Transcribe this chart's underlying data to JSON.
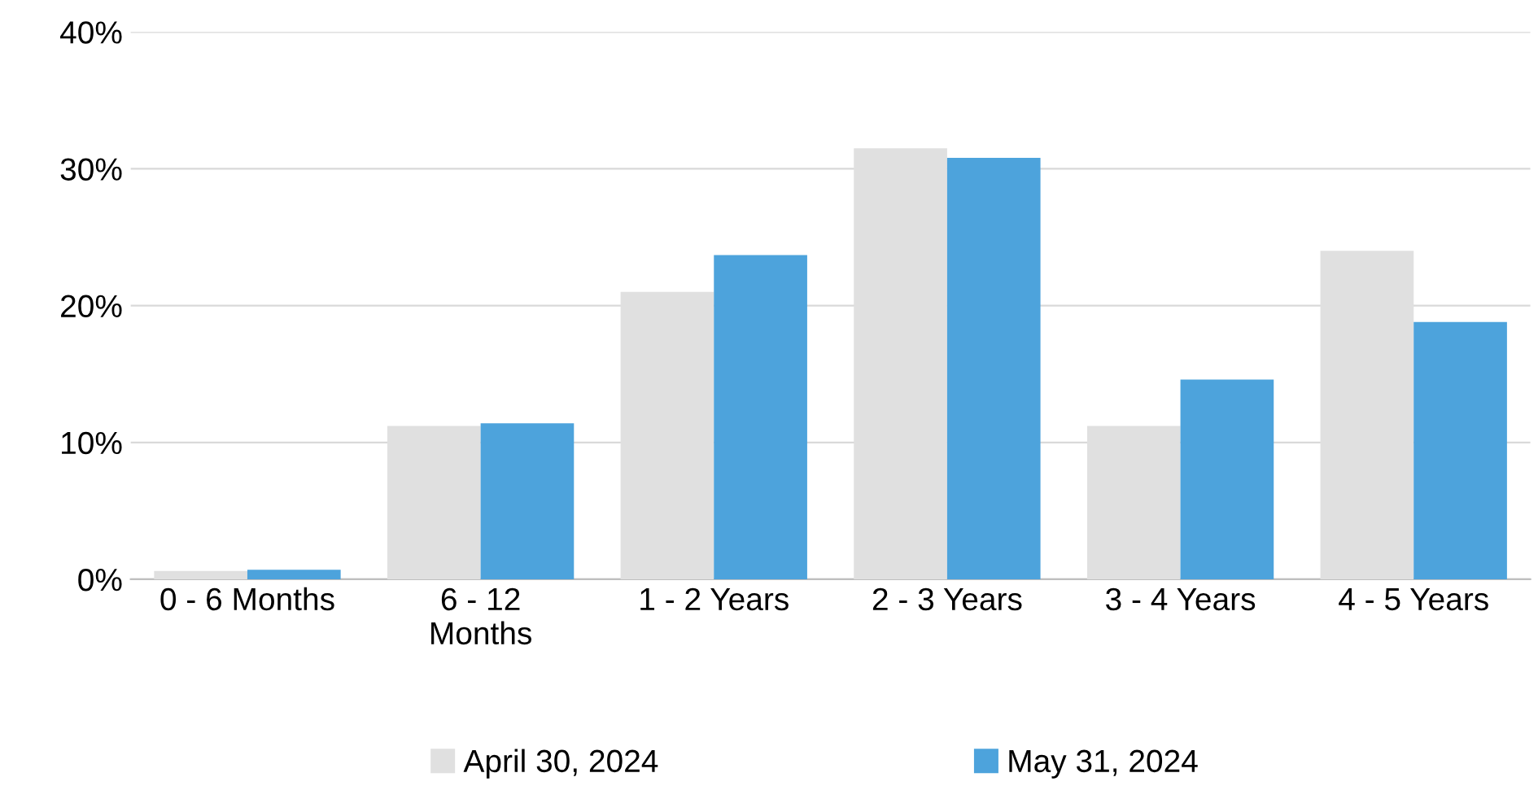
{
  "chart_data": {
    "type": "bar",
    "categories": [
      "0 - 6 Months",
      "6 - 12\nMonths",
      "1 - 2 Years",
      "2 - 3 Years",
      "3 - 4 Years",
      "4 - 5 Years"
    ],
    "series": [
      {
        "name": "April 30, 2024",
        "color": "#e0e0e0",
        "values": [
          0.6,
          11.2,
          21.0,
          31.5,
          11.2,
          24.0
        ]
      },
      {
        "name": "May 31, 2024",
        "color": "#4da3dc",
        "values": [
          0.7,
          11.4,
          23.7,
          30.8,
          14.6,
          18.8
        ]
      }
    ],
    "ylim": [
      0,
      40
    ],
    "yticks": [
      {
        "value": 0,
        "label": "0%"
      },
      {
        "value": 10,
        "label": "10%"
      },
      {
        "value": 20,
        "label": "20%"
      },
      {
        "value": 30,
        "label": "30%"
      },
      {
        "value": 40,
        "label": "40%"
      }
    ],
    "grid": "y",
    "legend": "bottom"
  }
}
